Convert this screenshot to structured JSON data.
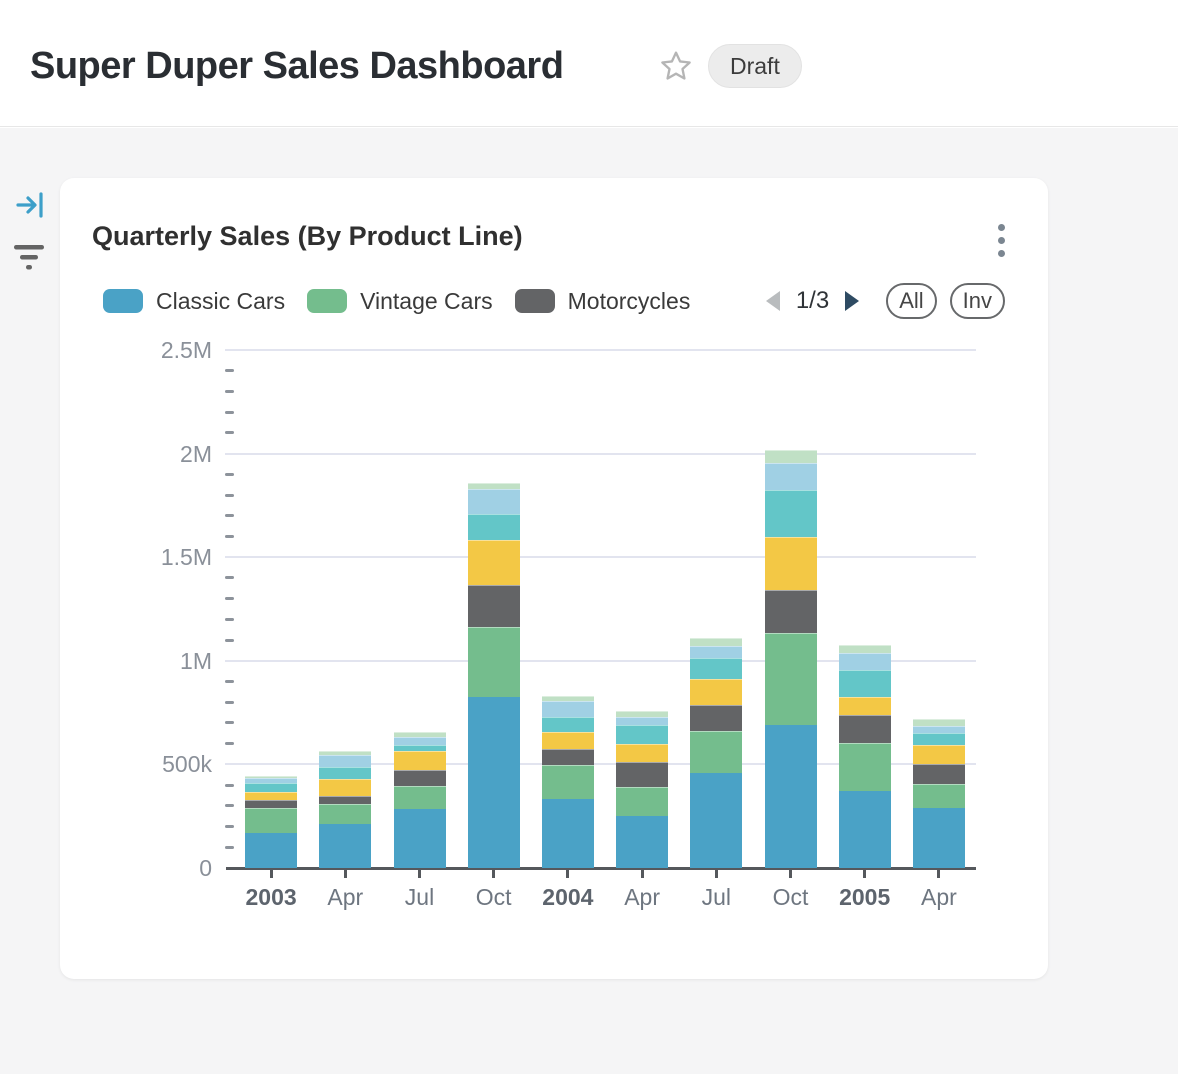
{
  "header": {
    "title": "Super Duper Sales Dashboard",
    "status_badge": "Draft"
  },
  "card": {
    "title": "Quarterly Sales (By Product Line)",
    "pagination": {
      "label": "1/3"
    },
    "filter_buttons": {
      "all": "All",
      "inv": "Inv"
    }
  },
  "icons": {
    "sidebar_collapse": "arrow-to-bar",
    "sidebar_filter": "filter-lines",
    "title_star": "star-outline",
    "card_menu": "kebab-vertical",
    "legend_prev": "triangle-left",
    "legend_next": "triangle-right"
  },
  "colors": {
    "accent_blue": "#3d9fc9",
    "page_background": "#f5f5f6",
    "card_background": "#ffffff",
    "gridline": "#e2e4ef",
    "axis_line": "#55585c",
    "y_axis_label": "#8a9099",
    "x_axis_label": "#6e7680",
    "pagination_prev_disabled": "#b9bcbe",
    "pagination_next_enabled": "#2e4b63",
    "badge_background": "#ececec"
  },
  "chart_data": {
    "type": "bar",
    "stacked": true,
    "title": "Quarterly Sales (By Product Line)",
    "categories": [
      "2003",
      "Apr",
      "Jul",
      "Oct",
      "2004",
      "Apr",
      "Jul",
      "Oct",
      "2005",
      "Apr"
    ],
    "bold_category_indices": [
      0,
      4,
      8
    ],
    "y_ticks": [
      "0",
      "500k",
      "1M",
      "1.5M",
      "2M",
      "2.5M"
    ],
    "ylim": [
      0,
      2500000
    ],
    "grid": "horizontal major gridlines with minor tick marks",
    "legend_position": "top",
    "legend_visible_labels": [
      "Classic Cars",
      "Vintage Cars",
      "Motorcycles"
    ],
    "legend_page": "1/3",
    "note": "Legend paginated (page 1 of 3); stacks 4-7 are drawn but unlabeled in this view. Values estimated from axis gridlines.",
    "series": [
      {
        "name": "Classic Cars",
        "color": "#4aa2c6",
        "values": [
          170000,
          210000,
          285000,
          825000,
          335000,
          250000,
          460000,
          690000,
          370000,
          290000
        ]
      },
      {
        "name": "Vintage Cars",
        "color": "#74bd8d",
        "values": [
          120000,
          100000,
          110000,
          340000,
          160000,
          140000,
          200000,
          445000,
          235000,
          115000
        ]
      },
      {
        "name": "Motorcycles",
        "color": "#636466",
        "values": [
          37000,
          38000,
          78000,
          200000,
          80000,
          120000,
          127000,
          205000,
          133000,
          95000
        ]
      },
      {
        "name": "",
        "color": "#f3c845",
        "values": [
          42000,
          80000,
          92000,
          220000,
          80000,
          90000,
          125000,
          260000,
          87000,
          95000
        ]
      },
      {
        "name": "",
        "color": "#63c6c8",
        "values": [
          40000,
          60000,
          27000,
          122000,
          73000,
          90000,
          100000,
          225000,
          130000,
          55000
        ]
      },
      {
        "name": "",
        "color": "#a0d0e4",
        "values": [
          24000,
          58000,
          40000,
          120000,
          80000,
          40000,
          60000,
          130000,
          85000,
          37000
        ]
      },
      {
        "name": "",
        "color": "#c0e0c5",
        "values": [
          11000,
          18000,
          24000,
          32000,
          24000,
          28000,
          37000,
          65000,
          37000,
          32000
        ]
      }
    ]
  }
}
